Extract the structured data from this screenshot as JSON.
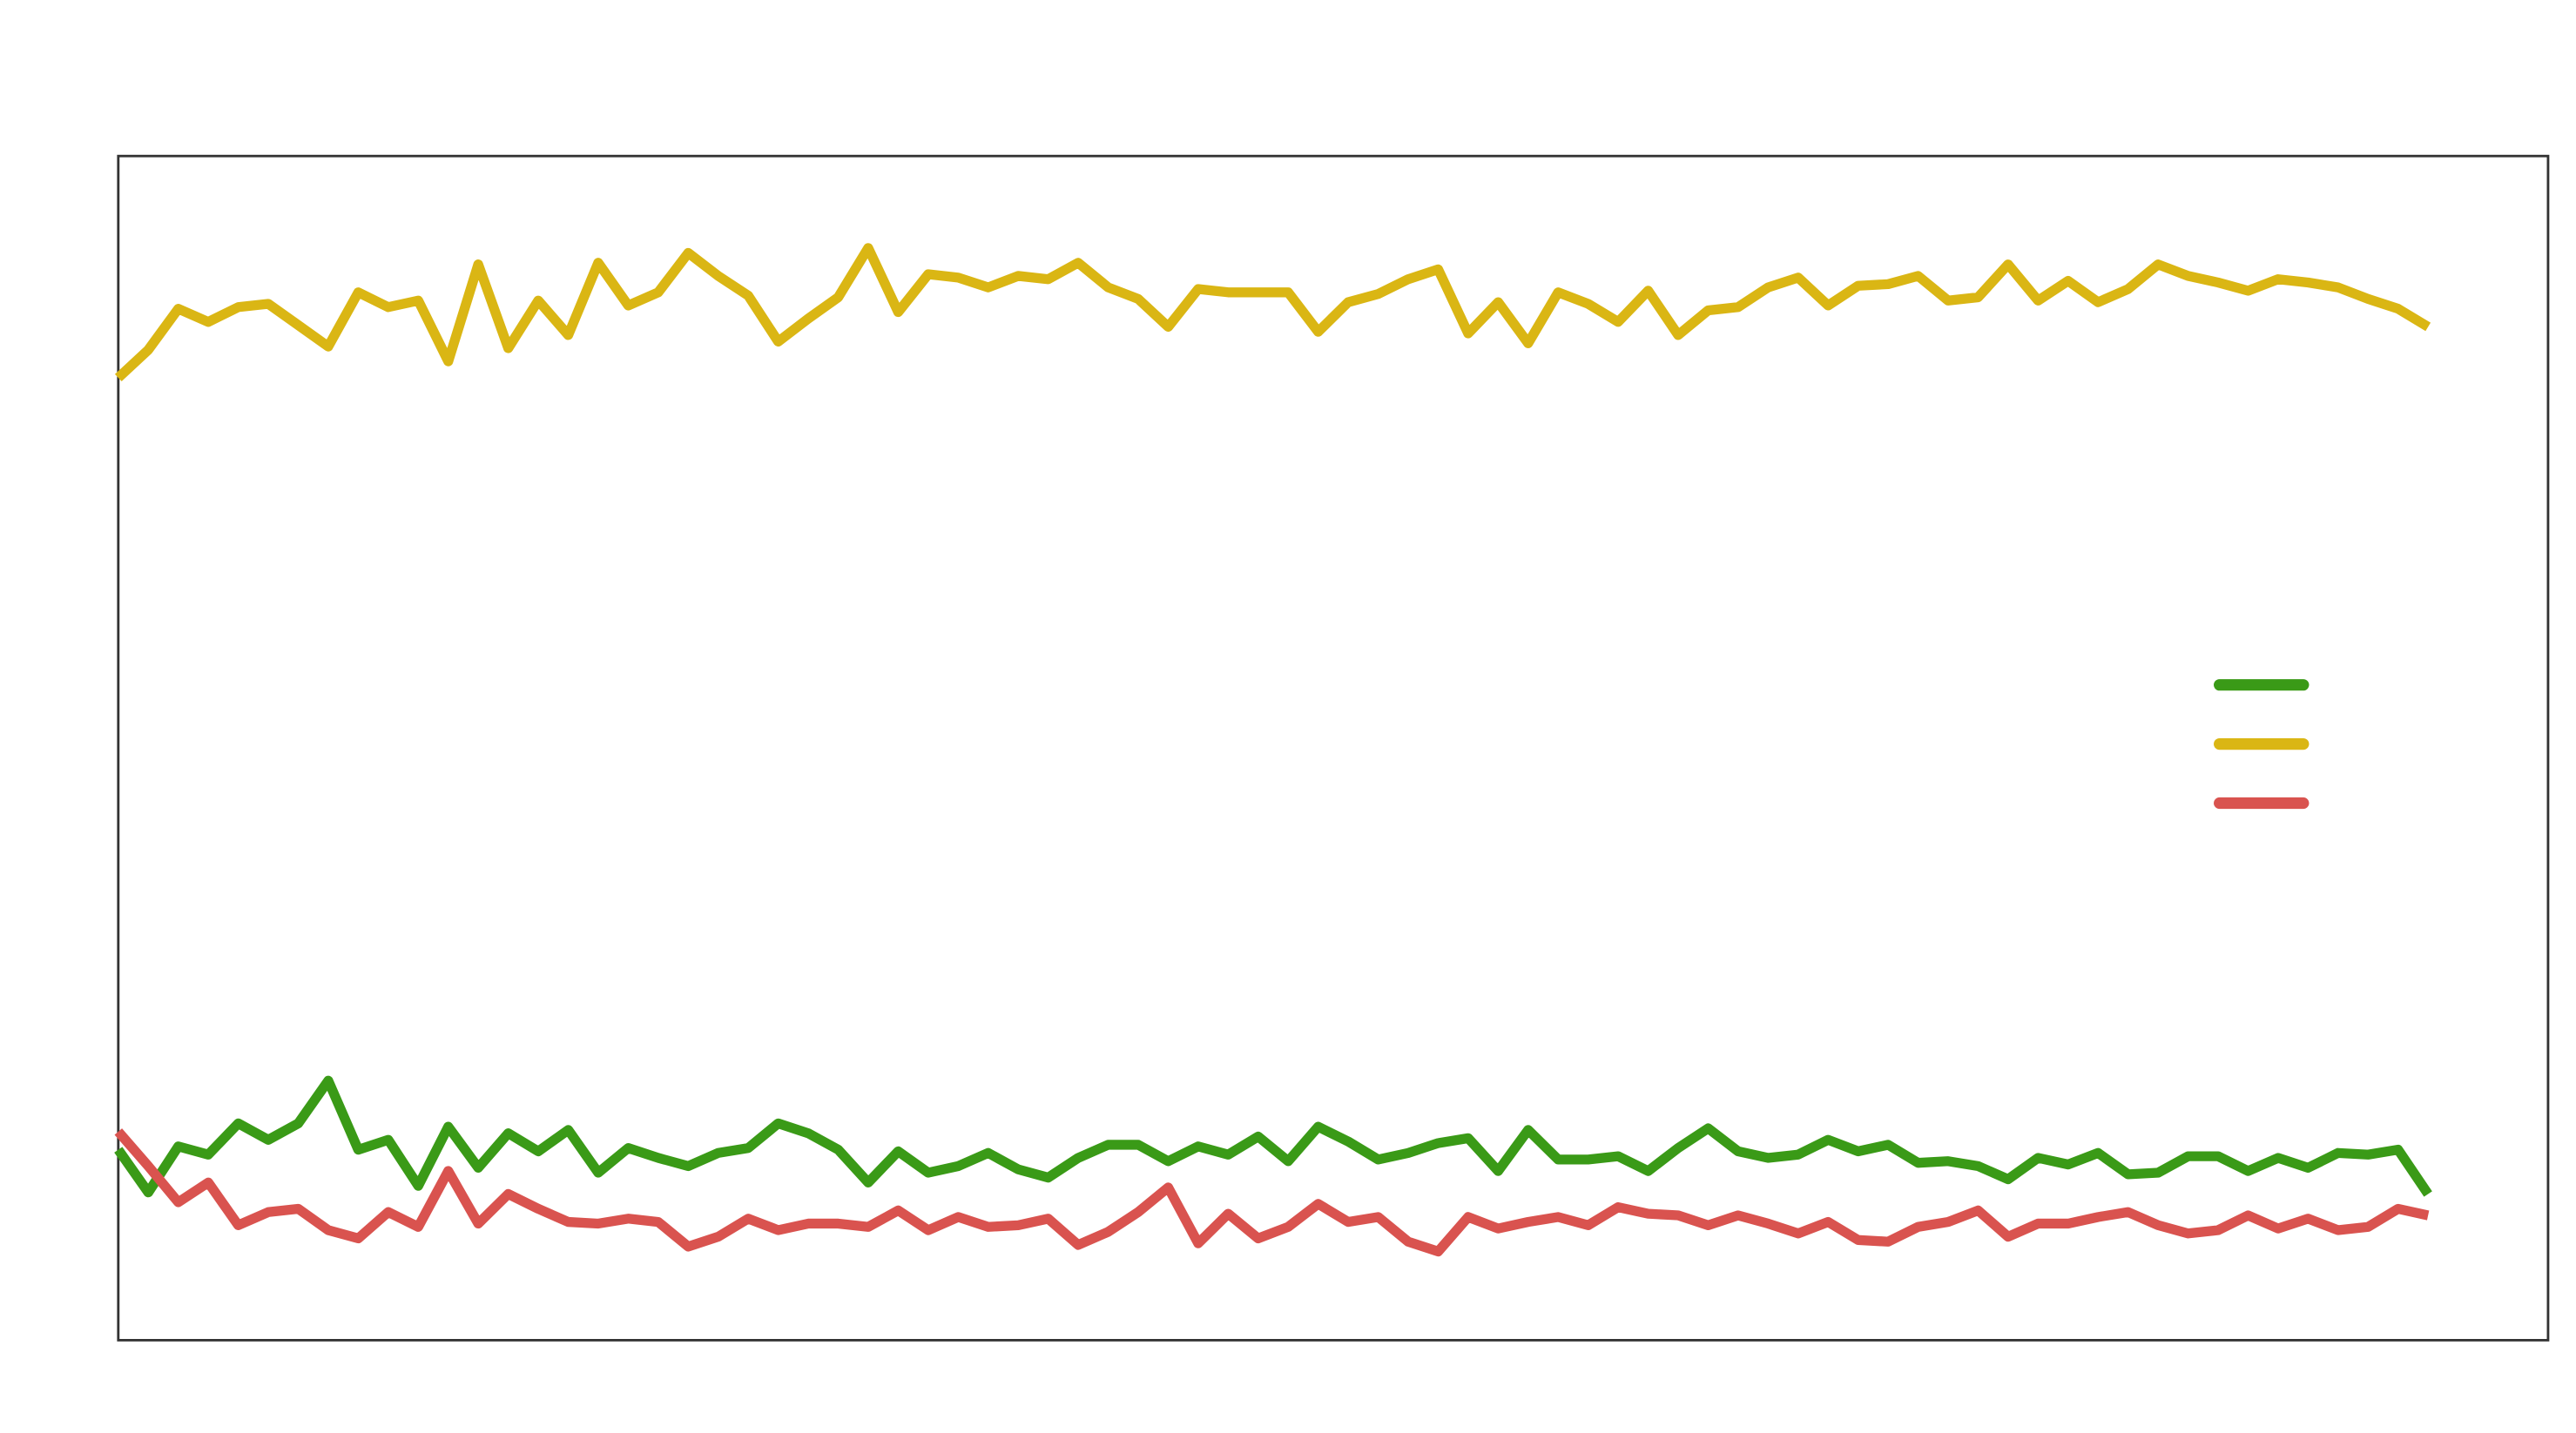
{
  "chart_data": {
    "type": "line",
    "x": [
      0,
      1,
      2,
      3,
      4,
      5,
      6,
      7,
      8,
      9,
      10,
      11,
      12,
      13,
      14,
      15,
      16,
      17,
      18,
      19,
      20,
      21,
      22,
      23,
      24,
      25,
      26,
      27,
      28,
      29,
      30,
      31,
      32,
      33,
      34,
      35,
      36,
      37,
      38,
      39,
      40,
      41,
      42,
      43,
      44,
      45,
      46,
      47,
      48,
      49,
      50,
      51,
      52,
      53,
      54,
      55,
      56,
      57,
      58,
      59,
      60,
      61,
      62,
      63,
      64,
      65,
      66,
      67,
      68,
      69,
      70,
      71,
      72,
      73,
      74,
      75,
      76,
      77
    ],
    "xlim": [
      0,
      81
    ],
    "ylim": [
      0,
      721
    ],
    "grid": false,
    "legend": "right",
    "series": [
      {
        "color": "#3a9a17",
        "values": [
          116,
          90,
          118,
          113,
          132,
          122,
          132,
          158,
          116,
          122,
          94,
          130,
          105,
          126,
          115,
          128,
          102,
          117,
          111,
          106,
          114,
          117,
          132,
          126,
          116,
          96,
          115,
          102,
          106,
          114,
          104,
          99,
          111,
          119,
          119,
          109,
          118,
          113,
          124,
          109,
          130,
          121,
          110,
          114,
          120,
          123,
          103,
          128,
          110,
          110,
          112,
          103,
          117,
          129,
          115,
          111,
          113,
          122,
          115,
          119,
          108,
          109,
          106,
          98,
          111,
          107,
          114,
          101,
          102,
          112,
          112,
          103,
          111,
          105,
          114,
          113,
          116,
          89
        ]
      },
      {
        "color": "#dab614",
        "values": [
          586,
          603,
          628,
          620,
          629,
          631,
          618,
          605,
          638,
          629,
          633,
          596,
          655,
          604,
          633,
          612,
          656,
          630,
          638,
          662,
          648,
          636,
          608,
          622,
          635,
          665,
          626,
          649,
          647,
          641,
          648,
          646,
          656,
          641,
          634,
          617,
          640,
          638,
          638,
          638,
          614,
          632,
          637,
          646,
          652,
          613,
          632,
          607,
          638,
          631,
          620,
          639,
          612,
          627,
          629,
          641,
          647,
          630,
          642,
          643,
          648,
          633,
          635,
          655,
          633,
          645,
          632,
          640,
          655,
          648,
          644,
          639,
          646,
          644,
          641,
          634,
          628,
          617
        ]
      },
      {
        "color": "#d9534f",
        "values": [
          127,
          106,
          84,
          96,
          70,
          78,
          80,
          67,
          62,
          78,
          69,
          103,
          71,
          89,
          80,
          72,
          71,
          74,
          72,
          57,
          63,
          74,
          67,
          71,
          71,
          69,
          79,
          67,
          75,
          69,
          70,
          74,
          58,
          66,
          78,
          93,
          59,
          77,
          62,
          69,
          83,
          72,
          75,
          60,
          54,
          75,
          68,
          72,
          75,
          70,
          81,
          77,
          76,
          70,
          76,
          71,
          65,
          72,
          61,
          60,
          69,
          72,
          79,
          63,
          71,
          71,
          75,
          78,
          70,
          65,
          67,
          76,
          68,
          74,
          67,
          69,
          80,
          76
        ]
      }
    ]
  }
}
